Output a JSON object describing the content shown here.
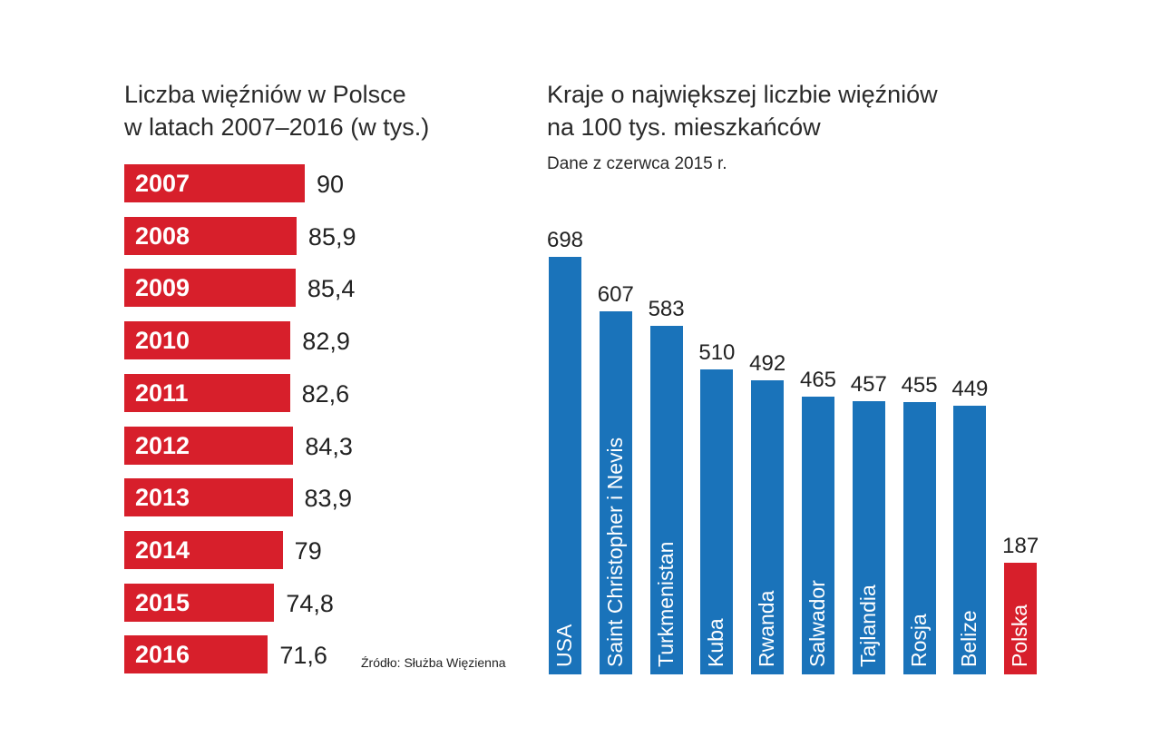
{
  "chart_data": [
    {
      "type": "bar",
      "orientation": "horizontal",
      "title": "Liczba więźniów w Polsce",
      "title_line2": "w latach 2007–2016 (w tys.)",
      "categories": [
        "2007",
        "2008",
        "2009",
        "2010",
        "2011",
        "2012",
        "2013",
        "2014",
        "2015",
        "2016"
      ],
      "values": [
        90,
        85.9,
        85.4,
        82.9,
        82.6,
        84.3,
        83.9,
        79,
        74.8,
        71.6
      ],
      "value_labels": [
        "90",
        "85,9",
        "85,4",
        "82,9",
        "82,6",
        "84,3",
        "83,9",
        "79",
        "74,8",
        "71,6"
      ],
      "bar_color": "#d71f2b",
      "source": "Źródło: Służba Więzienna"
    },
    {
      "type": "bar",
      "orientation": "vertical",
      "title": "Kraje o największej liczbie więźniów",
      "title_line2": "na 100 tys. mieszkańców",
      "subtitle": "Dane z czerwca 2015 r.",
      "categories": [
        "USA",
        "Saint Christopher i Nevis",
        "Turkmenistan",
        "Kuba",
        "Rwanda",
        "Salwador",
        "Tajlandia",
        "Rosja",
        "Belize",
        "Polska"
      ],
      "values": [
        698,
        607,
        583,
        510,
        492,
        465,
        457,
        455,
        449,
        187
      ],
      "colors": [
        "#1a73ba",
        "#1a73ba",
        "#1a73ba",
        "#1a73ba",
        "#1a73ba",
        "#1a73ba",
        "#1a73ba",
        "#1a73ba",
        "#1a73ba",
        "#d71f2b"
      ]
    }
  ]
}
